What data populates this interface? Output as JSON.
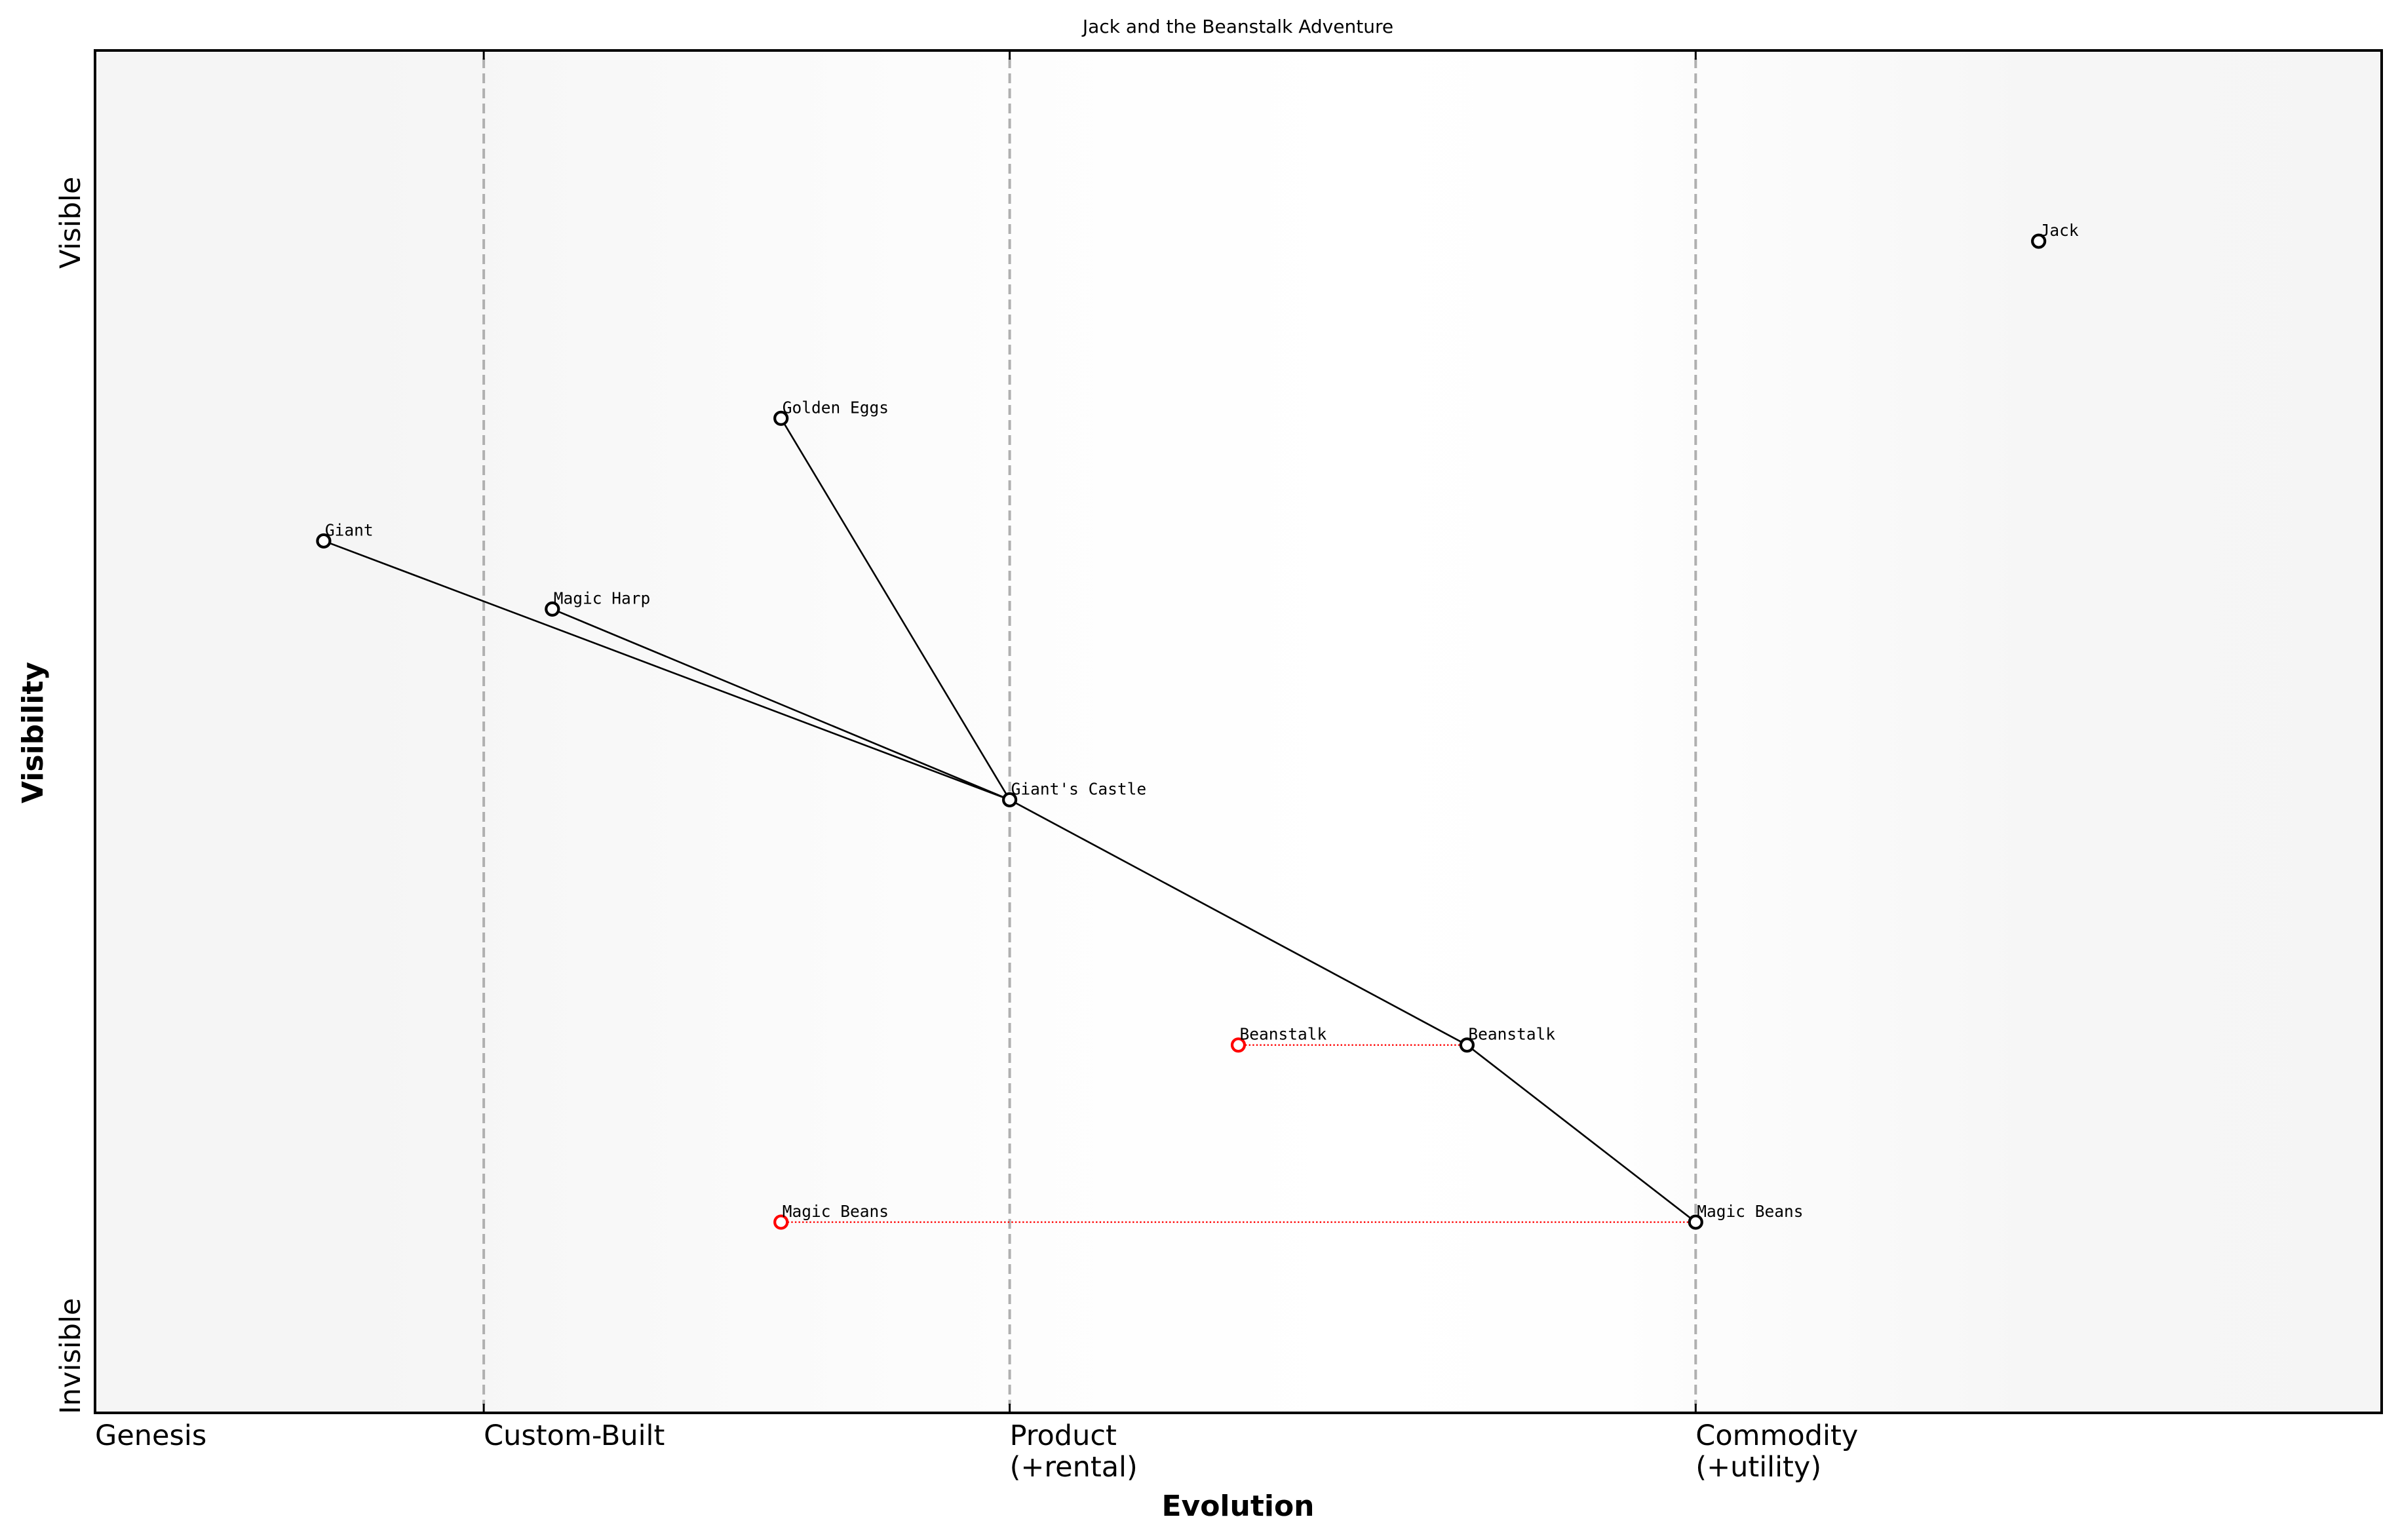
{
  "chart_data": {
    "type": "scatter",
    "subtype": "wardley-map",
    "title": "Jack and the Beanstalk Adventure",
    "xlabel": "Evolution",
    "ylabel": "Visibility",
    "xlim": [
      0,
      1
    ],
    "ylim": [
      0,
      1
    ],
    "grid": false,
    "y_extremes": {
      "top": "Visible",
      "bottom": "Invisible"
    },
    "stages": [
      {
        "x": 0.0,
        "label": "Genesis",
        "line": false
      },
      {
        "x": 0.17,
        "label": "Custom-Built",
        "line": true
      },
      {
        "x": 0.4,
        "label": "Product\n(+rental)",
        "line": true
      },
      {
        "x": 0.7,
        "label": "Commodity\n(+utility)",
        "line": true
      }
    ],
    "components": [
      {
        "name": "Jack",
        "x": 0.85,
        "y": 0.86
      },
      {
        "name": "Golden Eggs",
        "x": 0.3,
        "y": 0.73
      },
      {
        "name": "Giant",
        "x": 0.1,
        "y": 0.64
      },
      {
        "name": "Magic Harp",
        "x": 0.2,
        "y": 0.59
      },
      {
        "name": "Giant's Castle",
        "x": 0.4,
        "y": 0.45
      },
      {
        "name": "Beanstalk",
        "x": 0.6,
        "y": 0.27
      },
      {
        "name": "Magic Beans",
        "x": 0.7,
        "y": 0.14
      }
    ],
    "evolved_components": [
      {
        "name": "Beanstalk",
        "x": 0.5,
        "y": 0.27,
        "from_x": 0.6
      },
      {
        "name": "Magic Beans",
        "x": 0.3,
        "y": 0.14,
        "from_x": 0.7
      }
    ],
    "links": [
      {
        "from": "Giant",
        "to": "Giant's Castle"
      },
      {
        "from": "Magic Harp",
        "to": "Giant's Castle"
      },
      {
        "from": "Golden Eggs",
        "to": "Giant's Castle"
      },
      {
        "from": "Giant's Castle",
        "to": "Beanstalk"
      },
      {
        "from": "Beanstalk",
        "to": "Magic Beans"
      }
    ],
    "colors": {
      "component_stroke": "#000000",
      "evolved_stroke": "#ff0000",
      "evolution_line": "#ff0000",
      "stage_line": "#b0b0b0",
      "background_edge": "#f5f5f5",
      "background_center": "#ffffff"
    }
  }
}
